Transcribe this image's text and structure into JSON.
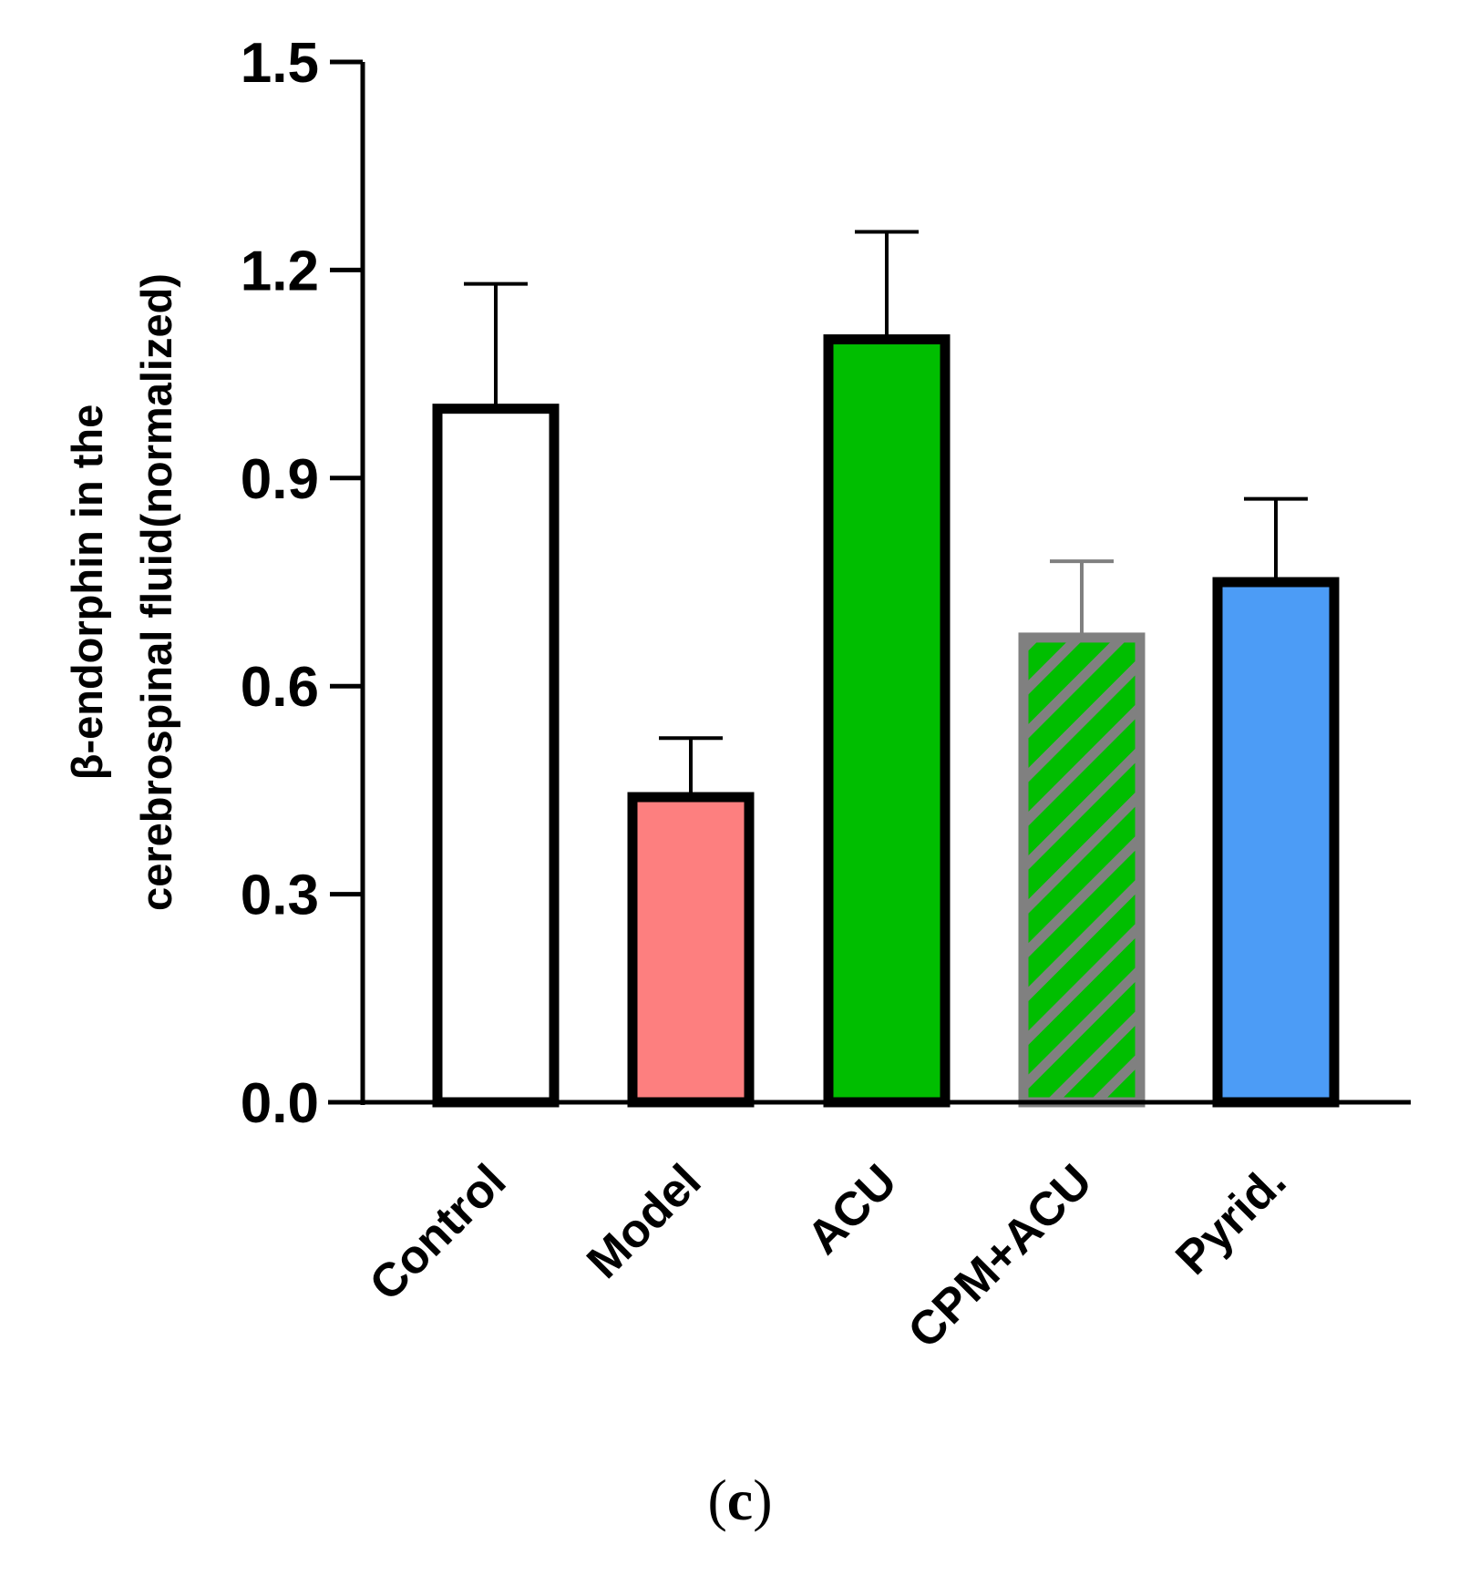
{
  "chart_data": {
    "type": "bar",
    "title": "",
    "xlabel": "",
    "ylabel_lines": [
      "β-endorphin in the",
      "cerebrospinal fluid(normalized)"
    ],
    "ylim": [
      0,
      1.5
    ],
    "yticks": [
      "0.0",
      "0.3",
      "0.6",
      "0.9",
      "1.2",
      "1.5"
    ],
    "categories": [
      "Control",
      "Model",
      "ACU",
      "CPM+ACU",
      "Pyrid."
    ],
    "values": [
      1.0,
      0.44,
      1.1,
      0.67,
      0.75
    ],
    "errors": [
      0.18,
      0.085,
      0.155,
      0.11,
      0.12
    ],
    "styles": [
      {
        "fill": "#ffffff",
        "stroke": "#000000",
        "pattern": "none"
      },
      {
        "fill": "#fd7f7f",
        "stroke": "#000000",
        "pattern": "none"
      },
      {
        "fill": "#00be00",
        "stroke": "#000000",
        "pattern": "none"
      },
      {
        "fill": "#00be00",
        "stroke": "#808080",
        "pattern": "hatch"
      },
      {
        "fill": "#4c9cf6",
        "stroke": "#000000",
        "pattern": "none"
      }
    ]
  },
  "caption": {
    "open": "(",
    "letter": "c",
    "close": ")"
  }
}
